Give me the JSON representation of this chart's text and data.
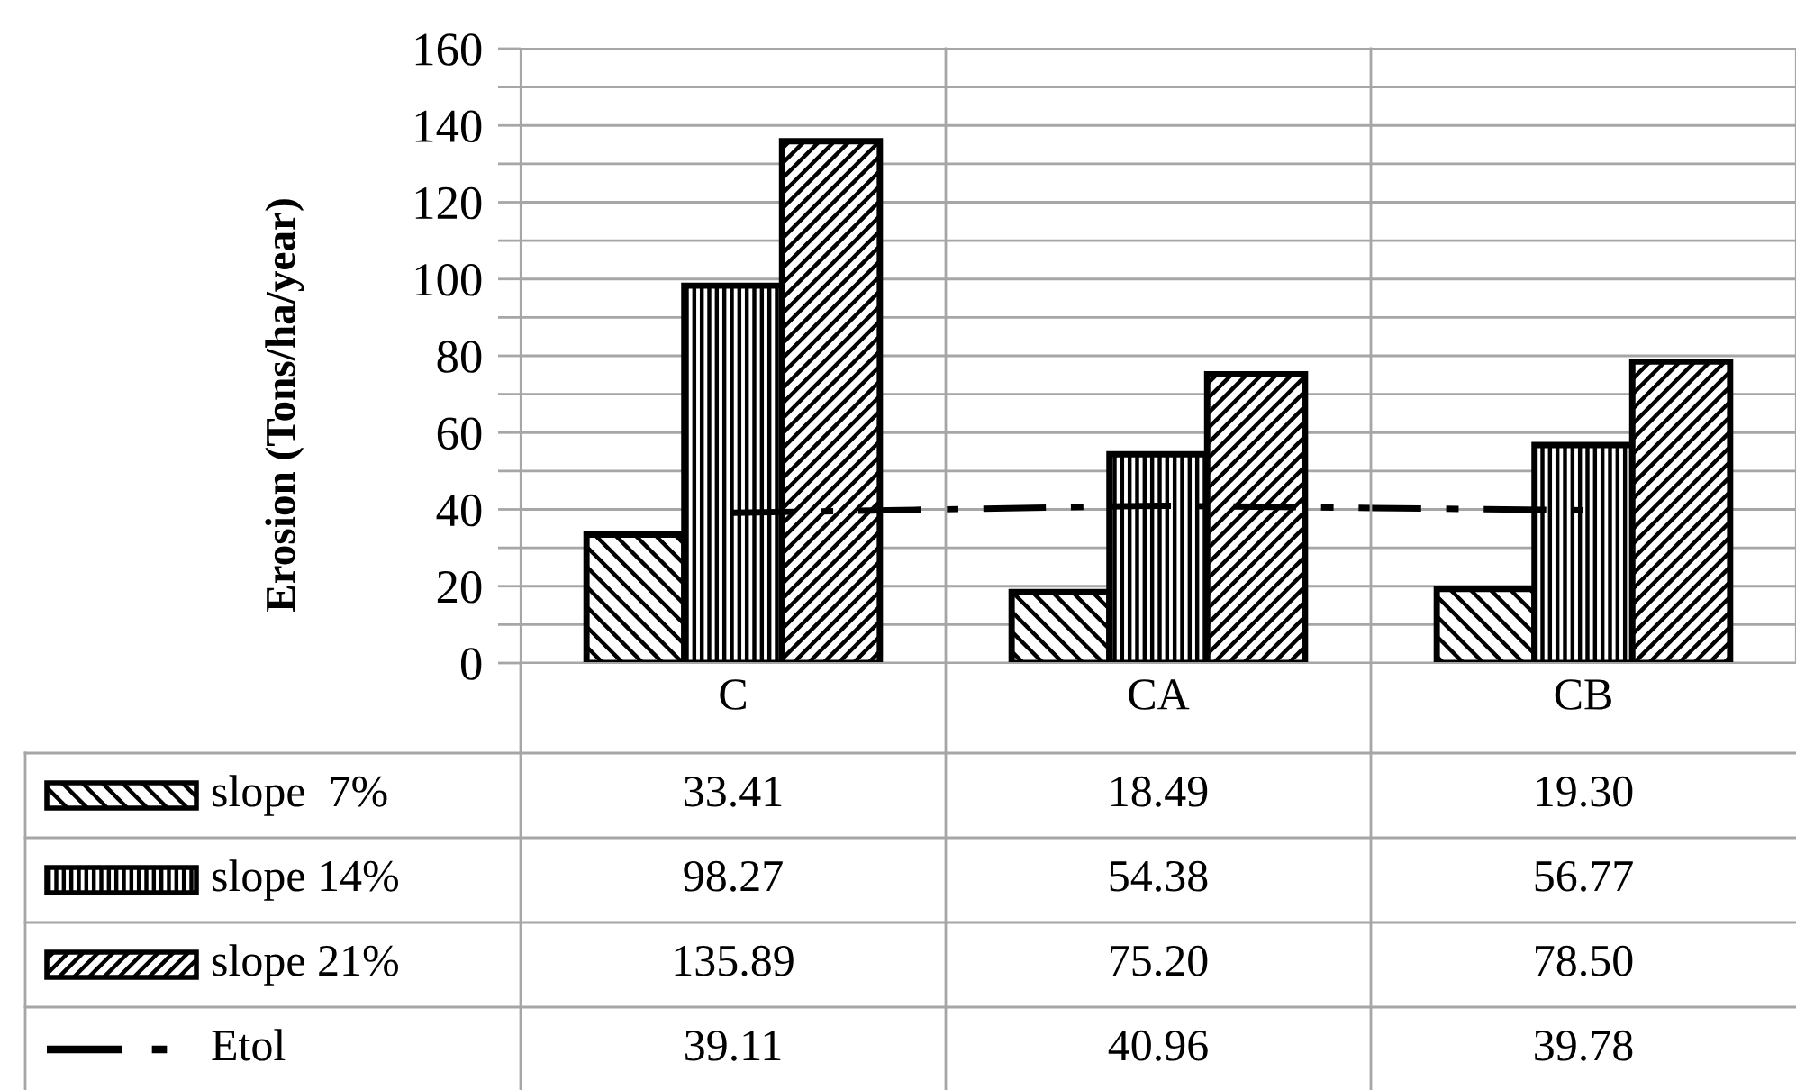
{
  "chart_data": {
    "type": "bar",
    "ylabel": "Erosion (Tons/ha/year)",
    "categories": [
      "C",
      "CA",
      "CB"
    ],
    "series": [
      {
        "name": "slope  7%",
        "color": "#000000",
        "values": [
          33.41,
          18.49,
          19.3
        ],
        "value_labels": [
          "33.41",
          "18.49",
          "19.30"
        ]
      },
      {
        "name": "slope 14%",
        "color": "#000000",
        "values": [
          98.27,
          54.38,
          56.77
        ],
        "value_labels": [
          "98.27",
          "54.38",
          "56.77"
        ]
      },
      {
        "name": "slope 21%",
        "color": "#000000",
        "values": [
          135.89,
          75.2,
          78.5
        ],
        "value_labels": [
          "135.89",
          "75.20",
          "78.50"
        ]
      },
      {
        "name": "Etol",
        "type": "line",
        "color": "#000000",
        "line_style": "dashdot",
        "values": [
          39.11,
          40.96,
          39.78
        ],
        "value_labels": [
          "39.11",
          "40.96",
          "39.78"
        ]
      }
    ],
    "ylim": [
      0,
      160
    ],
    "yticks": [
      0,
      {
        "value": 10,
        "label": null
      },
      20,
      {
        "value": 30,
        "label": null
      },
      40,
      {
        "value": 50,
        "label": null
      },
      60,
      {
        "value": 70,
        "label": null
      },
      80,
      {
        "value": 90,
        "label": null
      },
      100,
      {
        "value": 110,
        "label": null
      },
      120,
      {
        "value": 130,
        "label": null
      },
      140,
      {
        "value": 150,
        "label": null
      },
      160
    ],
    "grid": "y",
    "legend": "bottom"
  }
}
